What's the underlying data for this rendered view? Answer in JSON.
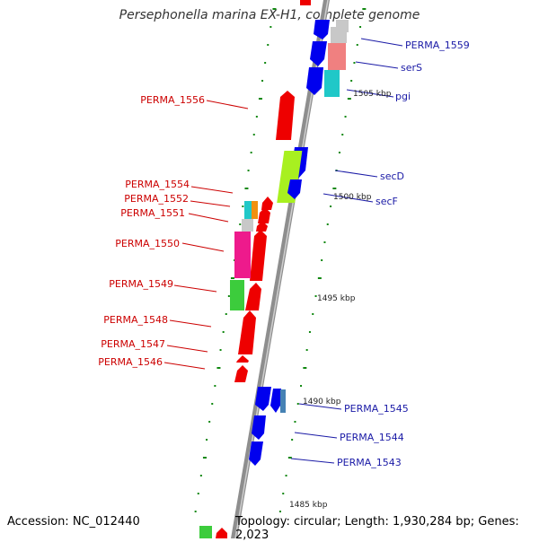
{
  "title": "Persephonella marina EX-H1, complete genome",
  "footer": {
    "accession": "Accession: NC_012440",
    "topology": "Topology: circular; Length: 1,930,284 bp; Genes: 2,023"
  },
  "colors": {
    "backbone": "#8a8a8a",
    "tick": "#118811",
    "forward_gene": "#0000ee",
    "reverse_gene": "#ee0000",
    "label_forward": "#1a1aa6",
    "label_reverse": "#cc0000",
    "rna_cyan": "#20c8c8",
    "rna_salmon": "#f08080",
    "rna_lime": "#a8f020",
    "rna_green": "#3ccc3c",
    "rna_pink": "#ee1a8c",
    "rna_orange": "#f09010",
    "rna_gray": "#c8c8c8"
  },
  "scale_labels": [
    "1505 kbp",
    "1500 kbp",
    "1495 kbp",
    "1490 kbp",
    "1485 kbp"
  ],
  "gene_labels_right": [
    "PERMA_1559",
    "serS",
    "pgi",
    "secD",
    "secF",
    "PERMA_1545",
    "PERMA_1544",
    "PERMA_1543"
  ],
  "gene_labels_left": [
    "PERMA_1556",
    "PERMA_1554",
    "PERMA_1552",
    "PERMA_1551",
    "PERMA_1550",
    "PERMA_1549",
    "PERMA_1548",
    "PERMA_1547",
    "PERMA_1546"
  ]
}
